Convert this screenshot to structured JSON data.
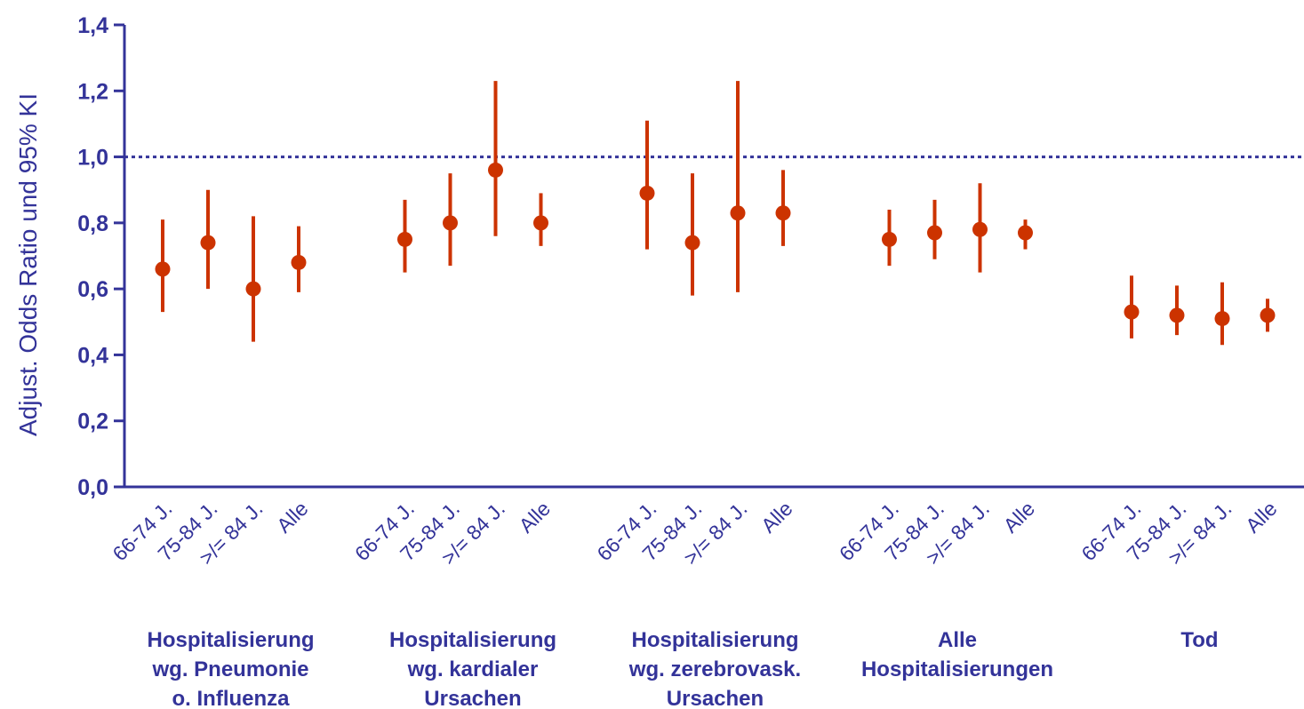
{
  "chart_data": {
    "type": "scatter",
    "ylabel": "Adjust. Odds Ratio und 95% KI",
    "ylim": [
      0,
      1.4
    ],
    "yticks": [
      "0,0",
      "0,2",
      "0,4",
      "0,6",
      "0,8",
      "1,0",
      "1,2",
      "1,4"
    ],
    "reference_line": 1.0,
    "grid": false,
    "groups": [
      {
        "label": [
          "Hospitalisierung",
          "wg. Pneumonie",
          "o. Influenza"
        ],
        "points": [
          {
            "category": "66-74 J.",
            "or": 0.66,
            "lower": 0.53,
            "upper": 0.81
          },
          {
            "category": "75-84 J.",
            "or": 0.74,
            "lower": 0.6,
            "upper": 0.9
          },
          {
            "category": ">/= 84 J.",
            "or": 0.6,
            "lower": 0.44,
            "upper": 0.82
          },
          {
            "category": "Alle",
            "or": 0.68,
            "lower": 0.59,
            "upper": 0.79
          }
        ]
      },
      {
        "label": [
          "Hospitalisierung",
          "wg. kardialer",
          "Ursachen"
        ],
        "points": [
          {
            "category": "66-74 J.",
            "or": 0.75,
            "lower": 0.65,
            "upper": 0.87
          },
          {
            "category": "75-84 J.",
            "or": 0.8,
            "lower": 0.67,
            "upper": 0.95
          },
          {
            "category": ">/= 84 J.",
            "or": 0.96,
            "lower": 0.76,
            "upper": 1.23
          },
          {
            "category": "Alle",
            "or": 0.8,
            "lower": 0.73,
            "upper": 0.89
          }
        ]
      },
      {
        "label": [
          "Hospitalisierung",
          "wg. zerebrovask.",
          "Ursachen"
        ],
        "points": [
          {
            "category": "66-74 J.",
            "or": 0.89,
            "lower": 0.72,
            "upper": 1.11
          },
          {
            "category": "75-84 J.",
            "or": 0.74,
            "lower": 0.58,
            "upper": 0.95
          },
          {
            "category": ">/= 84 J.",
            "or": 0.83,
            "lower": 0.59,
            "upper": 1.23
          },
          {
            "category": "Alle",
            "or": 0.83,
            "lower": 0.73,
            "upper": 0.96
          }
        ]
      },
      {
        "label": [
          "Alle",
          "Hospitalisierungen"
        ],
        "points": [
          {
            "category": "66-74 J.",
            "or": 0.75,
            "lower": 0.67,
            "upper": 0.84
          },
          {
            "category": "75-84 J.",
            "or": 0.77,
            "lower": 0.69,
            "upper": 0.87
          },
          {
            "category": ">/= 84 J.",
            "or": 0.78,
            "lower": 0.65,
            "upper": 0.92
          },
          {
            "category": "Alle",
            "or": 0.77,
            "lower": 0.72,
            "upper": 0.81
          }
        ]
      },
      {
        "label": [
          "Tod"
        ],
        "points": [
          {
            "category": "66-74 J.",
            "or": 0.53,
            "lower": 0.45,
            "upper": 0.64
          },
          {
            "category": "75-84 J.",
            "or": 0.52,
            "lower": 0.46,
            "upper": 0.61
          },
          {
            "category": ">/= 84 J.",
            "or": 0.51,
            "lower": 0.43,
            "upper": 0.62
          },
          {
            "category": "Alle",
            "or": 0.52,
            "lower": 0.47,
            "upper": 0.57
          }
        ]
      }
    ],
    "colors": {
      "axis": "#333399",
      "marker": "#cc3300",
      "reference": "#333399"
    }
  }
}
